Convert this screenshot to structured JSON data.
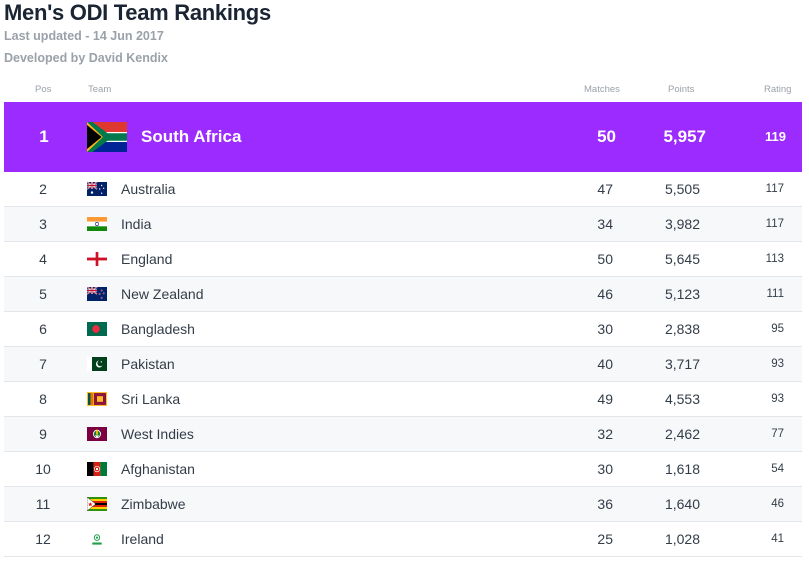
{
  "header": {
    "title": "Men's ODI Team Rankings",
    "last_updated": "Last updated - 14 Jun 2017",
    "developed_by": "Developed by David Kendix"
  },
  "columns": {
    "pos": "Pos",
    "team": "Team",
    "matches": "Matches",
    "points": "Points",
    "rating": "Rating"
  },
  "colors": {
    "highlight": "#9c2bff",
    "row_divider": "#e3e6ea"
  },
  "top": {
    "pos": "1",
    "team": "South Africa",
    "flag": "south-africa-flag",
    "matches": "50",
    "points": "5,957",
    "rating": "119"
  },
  "rows": [
    {
      "pos": "2",
      "team": "Australia",
      "flag": "australia-flag",
      "matches": "47",
      "points": "5,505",
      "rating": "117"
    },
    {
      "pos": "3",
      "team": "India",
      "flag": "india-flag",
      "matches": "34",
      "points": "3,982",
      "rating": "117"
    },
    {
      "pos": "4",
      "team": "England",
      "flag": "england-flag",
      "matches": "50",
      "points": "5,645",
      "rating": "113"
    },
    {
      "pos": "5",
      "team": "New Zealand",
      "flag": "new-zealand-flag",
      "matches": "46",
      "points": "5,123",
      "rating": "111"
    },
    {
      "pos": "6",
      "team": "Bangladesh",
      "flag": "bangladesh-flag",
      "matches": "30",
      "points": "2,838",
      "rating": "95"
    },
    {
      "pos": "7",
      "team": "Pakistan",
      "flag": "pakistan-flag",
      "matches": "40",
      "points": "3,717",
      "rating": "93"
    },
    {
      "pos": "8",
      "team": "Sri Lanka",
      "flag": "sri-lanka-flag",
      "matches": "49",
      "points": "4,553",
      "rating": "93"
    },
    {
      "pos": "9",
      "team": "West Indies",
      "flag": "west-indies-flag",
      "matches": "32",
      "points": "2,462",
      "rating": "77"
    },
    {
      "pos": "10",
      "team": "Afghanistan",
      "flag": "afghanistan-flag",
      "matches": "30",
      "points": "1,618",
      "rating": "54"
    },
    {
      "pos": "11",
      "team": "Zimbabwe",
      "flag": "zimbabwe-flag",
      "matches": "36",
      "points": "1,640",
      "rating": "46"
    },
    {
      "pos": "12",
      "team": "Ireland",
      "flag": "ireland-flag",
      "matches": "25",
      "points": "1,028",
      "rating": "41"
    }
  ]
}
